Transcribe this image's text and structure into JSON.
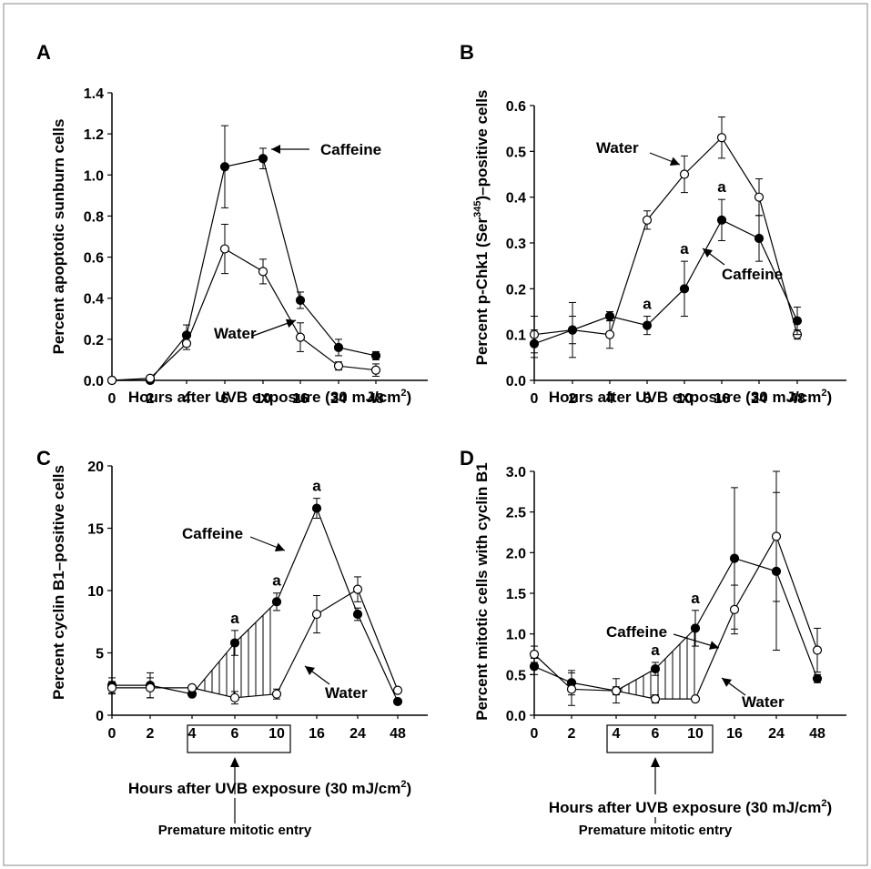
{
  "chart_data": [
    {
      "panel": "A",
      "type": "line",
      "ylabel": "Percent apoptotic sunburn cells",
      "xlabel": "Hours after UVB exposure (30 mJ/cm",
      "xlabel_sup": "2",
      "xlabel_end": ")",
      "categories": [
        "0",
        "2",
        "4",
        "6",
        "10",
        "16",
        "24",
        "48"
      ],
      "ylim": [
        0,
        1.4
      ],
      "yticks": [
        "0.0",
        "0.2",
        "0.4",
        "0.6",
        "0.8",
        "1.0",
        "1.2",
        "1.4"
      ],
      "series": [
        {
          "name": "Caffeine",
          "marker": "filled",
          "values": [
            0.0,
            0.0,
            0.22,
            1.04,
            1.08,
            0.39,
            0.16,
            0.12
          ],
          "errors": [
            0,
            0,
            0.05,
            0.2,
            0.05,
            0.04,
            0.04,
            0.02
          ]
        },
        {
          "name": "Water",
          "marker": "open",
          "values": [
            0.0,
            0.01,
            0.18,
            0.64,
            0.53,
            0.21,
            0.07,
            0.05
          ],
          "errors": [
            0,
            0.01,
            0.03,
            0.12,
            0.06,
            0.07,
            0.02,
            0.03
          ]
        }
      ],
      "labels": [
        {
          "text": "Caffeine"
        },
        {
          "text": "Water"
        }
      ]
    },
    {
      "panel": "B",
      "type": "line",
      "ylabel": "Percent p-Chk1 (Ser",
      "ylabel_sup": "345",
      "ylabel_end": ")–positive cells",
      "xlabel": "Hours after UVB exposure (30 mJ/cm",
      "xlabel_sup": "2",
      "xlabel_end": ")",
      "categories": [
        "0",
        "2",
        "4",
        "6",
        "10",
        "16",
        "24",
        "48"
      ],
      "ylim": [
        0,
        0.6
      ],
      "yticks": [
        "0.0",
        "0.1",
        "0.2",
        "0.3",
        "0.4",
        "0.5",
        "0.6"
      ],
      "series": [
        {
          "name": "Water",
          "marker": "open",
          "values": [
            0.1,
            0.11,
            0.1,
            0.35,
            0.45,
            0.53,
            0.4,
            0.1
          ],
          "errors": [
            0.04,
            0.03,
            0.03,
            0.02,
            0.04,
            0.045,
            0.04,
            0.01
          ]
        },
        {
          "name": "Caffeine",
          "marker": "filled",
          "values": [
            0.08,
            0.11,
            0.14,
            0.12,
            0.2,
            0.35,
            0.31,
            0.13
          ],
          "errors": [
            0.03,
            0.06,
            0.01,
            0.02,
            0.06,
            0.045,
            0.05,
            0.03
          ]
        }
      ],
      "annotations": [
        "a",
        "a",
        "a"
      ],
      "labels": [
        {
          "text": "Water"
        },
        {
          "text": "Caffeine"
        }
      ]
    },
    {
      "panel": "C",
      "type": "line",
      "ylabel": "Percent cyclin B1–positive cells",
      "xlabel": "Hours after UVB exposure (30 mJ/cm",
      "xlabel_sup": "2",
      "xlabel_end": ")",
      "categories": [
        "0",
        "2",
        "4",
        "6",
        "10",
        "16",
        "24",
        "48"
      ],
      "ylim": [
        0,
        20
      ],
      "yticks": [
        "0",
        "5",
        "10",
        "15",
        "20"
      ],
      "series": [
        {
          "name": "Caffeine",
          "marker": "filled",
          "values": [
            2.4,
            2.4,
            1.7,
            5.8,
            9.1,
            16.6,
            8.1,
            1.1
          ],
          "errors": [
            0.6,
            1.0,
            0.2,
            1.0,
            0.7,
            0.8,
            0.5,
            0.1
          ]
        },
        {
          "name": "Water",
          "marker": "open",
          "values": [
            2.2,
            2.2,
            2.2,
            1.4,
            1.7,
            8.1,
            10.1,
            2.0
          ],
          "errors": [
            0.5,
            0.8,
            0.1,
            0.5,
            0.4,
            1.5,
            1.0,
            0.1
          ]
        }
      ],
      "annotations": [
        "a",
        "a",
        "a"
      ],
      "labels": [
        {
          "text": "Caffeine"
        },
        {
          "text": "Water"
        }
      ],
      "box_label": "Premature mitotic entry"
    },
    {
      "panel": "D",
      "type": "line",
      "ylabel": "Percent mitotic cells with cyclin B1",
      "xlabel": "Hours after UVB exposure (30 mJ/cm",
      "xlabel_sup": "2",
      "xlabel_end": ")",
      "categories": [
        "0",
        "2",
        "4",
        "6",
        "10",
        "16",
        "24",
        "48"
      ],
      "ylim": [
        0,
        3.0
      ],
      "yticks": [
        "0.0",
        "0.5",
        "1.0",
        "1.5",
        "2.0",
        "2.5",
        "3.0"
      ],
      "series": [
        {
          "name": "Caffeine",
          "marker": "filled",
          "values": [
            0.6,
            0.4,
            0.3,
            0.57,
            1.07,
            1.93,
            1.77,
            0.45
          ],
          "errors": [
            0.1,
            0.15,
            0.15,
            0.08,
            0.22,
            0.87,
            0.97,
            0.05
          ]
        },
        {
          "name": "Water",
          "marker": "open",
          "values": [
            0.75,
            0.32,
            0.3,
            0.2,
            0.2,
            1.3,
            2.2,
            0.8
          ],
          "errors": [
            0.1,
            0.2,
            0.05,
            0.05,
            0.02,
            0.3,
            0.8,
            0.27
          ]
        }
      ],
      "annotations": [
        "a",
        "a"
      ],
      "labels": [
        {
          "text": "Caffeine"
        },
        {
          "text": "Water"
        }
      ],
      "box_label": "Premature mitotic entry"
    }
  ]
}
